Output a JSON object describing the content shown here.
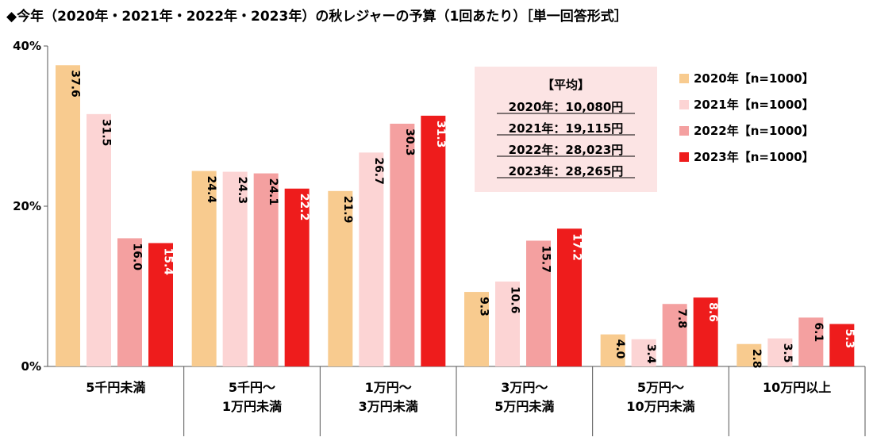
{
  "title": "◆今年（2020年・2021年・2022年・2023年）の秋レジャーの予算（1回あたり）［単一回答形式］",
  "chart_data": {
    "type": "bar",
    "categories": [
      [
        "5千円未満"
      ],
      [
        "5千円～",
        "1万円未満"
      ],
      [
        "1万円～",
        "3万円未満"
      ],
      [
        "3万円～",
        "5万円未満"
      ],
      [
        "5万円～",
        "10万円未満"
      ],
      [
        "10万円以上"
      ]
    ],
    "series": [
      {
        "name": "2020年【n=1000】",
        "color": "#F8CB8F",
        "label_color": "#000000",
        "values": [
          37.6,
          24.4,
          21.9,
          9.3,
          4.0,
          2.8
        ]
      },
      {
        "name": "2021年【n=1000】",
        "color": "#FCD4D4",
        "label_color": "#000000",
        "values": [
          31.5,
          24.3,
          26.7,
          10.6,
          3.4,
          3.5
        ]
      },
      {
        "name": "2022年【n=1000】",
        "color": "#F4A0A0",
        "label_color": "#000000",
        "values": [
          16.0,
          24.1,
          30.3,
          15.7,
          7.8,
          6.1
        ]
      },
      {
        "name": "2023年【n=1000】",
        "color": "#EE1C1C",
        "label_color": "#FFFFFF",
        "values": [
          15.4,
          22.2,
          31.3,
          17.2,
          8.6,
          5.3
        ]
      }
    ],
    "ylim": [
      0,
      40
    ],
    "yticks": [
      {
        "value": 0,
        "label": "0%"
      },
      {
        "value": 20,
        "label": "20%"
      },
      {
        "value": 40,
        "label": "40%"
      }
    ],
    "legend_position": "right",
    "grid": false
  },
  "average_box": {
    "title": "【平均】",
    "lines": [
      "2020年：10,080円",
      "2021年：19,115円",
      "2022年：28,023円",
      "2023年：28,265円"
    ],
    "background": "#FCE4E4"
  }
}
